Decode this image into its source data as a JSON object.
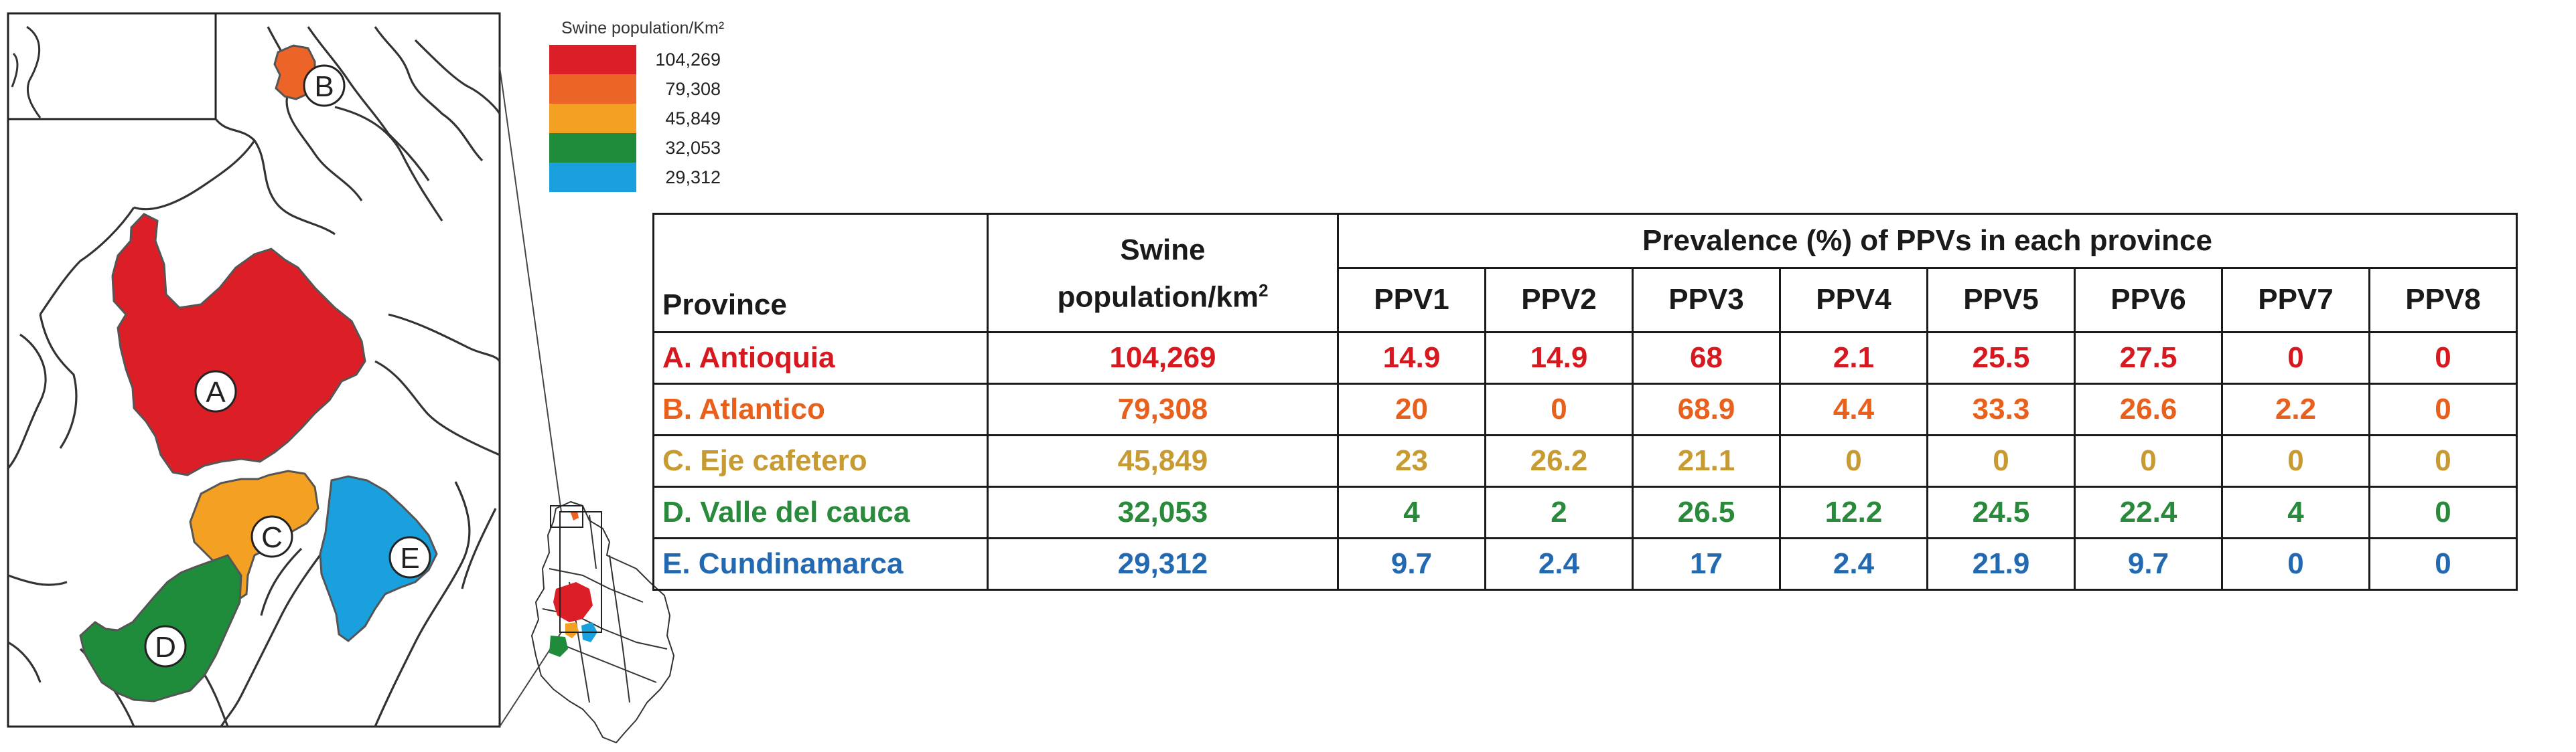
{
  "map": {
    "region_markers": [
      {
        "letter": "A",
        "province": "Antioquia"
      },
      {
        "letter": "B",
        "province": "Atlantico"
      },
      {
        "letter": "C",
        "province": "Eje cafetero"
      },
      {
        "letter": "D",
        "province": "Valle del cauca"
      },
      {
        "letter": "E",
        "province": "Cundinamarca"
      }
    ]
  },
  "legend": {
    "title": "Swine population/Km²",
    "items": [
      {
        "value": "104,269",
        "color": "#dc1f26"
      },
      {
        "value": "79,308",
        "color": "#ec6428"
      },
      {
        "value": "45,849",
        "color": "#f4a023"
      },
      {
        "value": "32,053",
        "color": "#1e8c3a"
      },
      {
        "value": "29,312",
        "color": "#1aa0dc"
      }
    ]
  },
  "table": {
    "province_header": "Province",
    "population_header_line1": "Swine",
    "population_header_line2": "population/km",
    "population_header_sup": "2",
    "prevalence_header": "Prevalence (%) of PPVs in each province",
    "ppv_headers": [
      "PPV1",
      "PPV2",
      "PPV3",
      "PPV4",
      "PPV5",
      "PPV6",
      "PPV7",
      "PPV8"
    ],
    "rows": [
      {
        "province": "A. Antioquia",
        "population": "104,269",
        "color": "#d7191f",
        "values": [
          "14.9",
          "14.9",
          "68",
          "2.1",
          "25.5",
          "27.5",
          "0",
          "0"
        ]
      },
      {
        "province": "B. Atlantico",
        "population": "79,308",
        "color": "#e8601c",
        "values": [
          "20",
          "0",
          "68.9",
          "4.4",
          "33.3",
          "26.6",
          "2.2",
          "0"
        ]
      },
      {
        "province": "C. Eje cafetero",
        "population": "45,849",
        "color": "#c89a32",
        "values": [
          "23",
          "26.2",
          "21.1",
          "0",
          "0",
          "0",
          "0",
          "0"
        ]
      },
      {
        "province": "D. Valle del cauca",
        "population": "32,053",
        "color": "#2a8a3c",
        "values": [
          "4",
          "2",
          "26.5",
          "12.2",
          "24.5",
          "22.4",
          "4",
          "0"
        ]
      },
      {
        "province": "E. Cundinamarca",
        "population": "29,312",
        "color": "#2369b2",
        "values": [
          "9.7",
          "2.4",
          "17",
          "2.4",
          "21.9",
          "9.7",
          "0",
          "0"
        ]
      }
    ]
  }
}
